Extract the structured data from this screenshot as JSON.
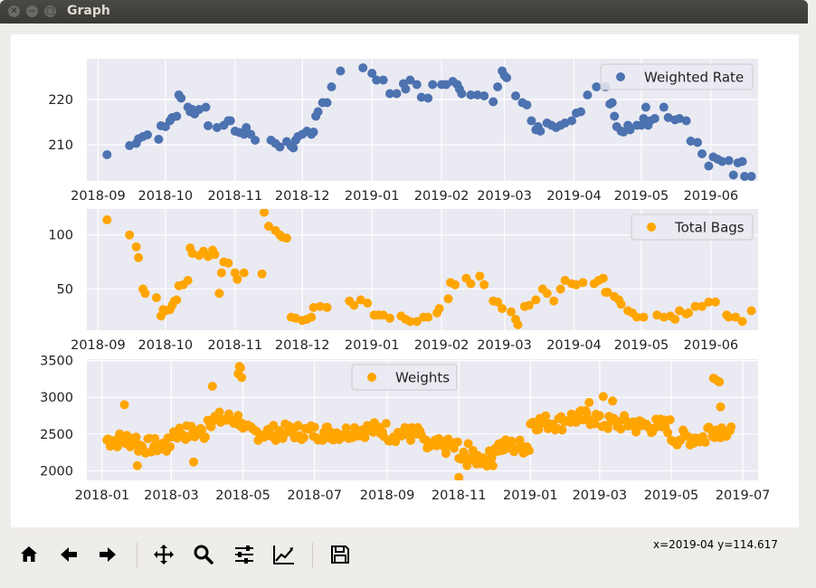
{
  "window": {
    "title": "Graph"
  },
  "status": {
    "coords": "x=2019-04 y=114.617"
  },
  "toolbar": {
    "icons": [
      "home-icon",
      "back-icon",
      "forward-icon",
      "pan-icon",
      "zoom-icon",
      "subplots-icon",
      "axes-edit-icon",
      "save-icon"
    ]
  },
  "colors": {
    "bg": "#eaeaf2",
    "blue": "#4c72b0",
    "orange": "#ffa500",
    "grid": "#ffffff"
  },
  "chart_data": [
    {
      "type": "scatter",
      "legend": "Weighted Rate",
      "legend_loc": "upper right",
      "x_axis": "date",
      "xlim": [
        "2018-08-27",
        "2019-06-22"
      ],
      "ylim": [
        202,
        229
      ],
      "xticks": [
        "2018-09",
        "2018-10",
        "2018-11",
        "2018-12",
        "2019-01",
        "2019-02",
        "2019-03",
        "2019-04",
        "2019-05",
        "2019-06"
      ],
      "yticks": [
        210,
        220
      ],
      "points": [
        [
          "2018-09-05",
          207.8
        ],
        [
          "2018-09-15",
          209.8
        ],
        [
          "2018-09-18",
          210.3
        ],
        [
          "2018-09-19",
          211.3
        ],
        [
          "2018-09-21",
          211.8
        ],
        [
          "2018-09-23",
          212.2
        ],
        [
          "2018-09-28",
          211.2
        ],
        [
          "2018-09-29",
          214.2
        ],
        [
          "2018-10-01",
          214.0
        ],
        [
          "2018-10-03",
          215.3
        ],
        [
          "2018-10-04",
          216.0
        ],
        [
          "2018-10-06",
          216.3
        ],
        [
          "2018-10-07",
          221.0
        ],
        [
          "2018-10-08",
          220.3
        ],
        [
          "2018-10-11",
          218.3
        ],
        [
          "2018-10-12",
          217.3
        ],
        [
          "2018-10-13",
          217.8
        ],
        [
          "2018-10-14",
          216.8
        ],
        [
          "2018-10-16",
          217.8
        ],
        [
          "2018-10-19",
          218.3
        ],
        [
          "2018-10-20",
          214.2
        ],
        [
          "2018-10-24",
          213.8
        ],
        [
          "2018-10-27",
          214.3
        ],
        [
          "2018-10-29",
          215.3
        ],
        [
          "2018-10-30",
          215.3
        ],
        [
          "2018-11-01",
          213.0
        ],
        [
          "2018-11-03",
          212.7
        ],
        [
          "2018-11-05",
          212.3
        ],
        [
          "2018-11-06",
          213.8
        ],
        [
          "2018-11-08",
          212.3
        ],
        [
          "2018-11-10",
          211.0
        ],
        [
          "2018-11-17",
          211.0
        ],
        [
          "2018-11-19",
          210.3
        ],
        [
          "2018-11-21",
          209.5
        ],
        [
          "2018-11-24",
          210.7
        ],
        [
          "2018-11-26",
          209.7
        ],
        [
          "2018-11-27",
          209.3
        ],
        [
          "2018-11-28",
          211.0
        ],
        [
          "2018-11-29",
          211.8
        ],
        [
          "2018-12-01",
          212.3
        ],
        [
          "2018-12-03",
          213.0
        ],
        [
          "2018-12-05",
          212.3
        ],
        [
          "2018-12-06",
          212.8
        ],
        [
          "2018-12-07",
          216.3
        ],
        [
          "2018-12-08",
          217.3
        ],
        [
          "2018-12-10",
          219.3
        ],
        [
          "2018-12-12",
          219.3
        ],
        [
          "2018-12-14",
          222.8
        ],
        [
          "2018-12-18",
          226.3
        ],
        [
          "2018-12-28",
          227.0
        ],
        [
          "2019-01-01",
          225.8
        ],
        [
          "2019-01-03",
          224.3
        ],
        [
          "2019-01-06",
          224.3
        ],
        [
          "2019-01-09",
          221.3
        ],
        [
          "2019-01-12",
          221.3
        ],
        [
          "2019-01-15",
          223.5
        ],
        [
          "2019-01-16",
          222.3
        ],
        [
          "2019-01-18",
          224.3
        ],
        [
          "2019-01-21",
          223.3
        ],
        [
          "2019-01-23",
          220.5
        ],
        [
          "2019-01-26",
          220.3
        ],
        [
          "2019-01-28",
          223.3
        ],
        [
          "2019-02-01",
          223.3
        ],
        [
          "2019-02-03",
          223.3
        ],
        [
          "2019-02-06",
          224.0
        ],
        [
          "2019-02-08",
          223.3
        ],
        [
          "2019-02-09",
          222.3
        ],
        [
          "2019-02-10",
          221.3
        ],
        [
          "2019-02-14",
          221.0
        ],
        [
          "2019-02-17",
          221.0
        ],
        [
          "2019-02-20",
          220.8
        ],
        [
          "2019-02-24",
          219.5
        ],
        [
          "2019-02-26",
          222.8
        ],
        [
          "2019-02-28",
          226.3
        ],
        [
          "2019-03-01",
          225.3
        ],
        [
          "2019-03-02",
          224.8
        ],
        [
          "2019-03-06",
          220.8
        ],
        [
          "2019-03-09",
          219.3
        ],
        [
          "2019-03-11",
          218.8
        ],
        [
          "2019-03-13",
          215.3
        ],
        [
          "2019-03-15",
          213.3
        ],
        [
          "2019-03-16",
          214.0
        ],
        [
          "2019-03-17",
          213.0
        ],
        [
          "2019-03-20",
          214.8
        ],
        [
          "2019-03-22",
          214.3
        ],
        [
          "2019-03-24",
          213.8
        ],
        [
          "2019-03-26",
          214.3
        ],
        [
          "2019-03-28",
          214.8
        ],
        [
          "2019-03-31",
          215.3
        ],
        [
          "2019-04-02",
          217.0
        ],
        [
          "2019-04-04",
          217.3
        ],
        [
          "2019-04-07",
          221.0
        ],
        [
          "2019-04-11",
          222.8
        ],
        [
          "2019-04-15",
          222.8
        ],
        [
          "2019-04-17",
          219.0
        ],
        [
          "2019-04-18",
          219.3
        ],
        [
          "2019-04-19",
          216.3
        ],
        [
          "2019-04-20",
          214.0
        ],
        [
          "2019-04-22",
          213.0
        ],
        [
          "2019-04-23",
          212.8
        ],
        [
          "2019-04-25",
          214.3
        ],
        [
          "2019-04-26",
          213.3
        ],
        [
          "2019-04-29",
          214.3
        ],
        [
          "2019-05-01",
          214.3
        ],
        [
          "2019-05-02",
          215.8
        ],
        [
          "2019-05-03",
          218.3
        ],
        [
          "2019-05-04",
          214.3
        ],
        [
          "2019-05-05",
          215.3
        ],
        [
          "2019-05-07",
          215.8
        ],
        [
          "2019-05-11",
          218.3
        ],
        [
          "2019-05-13",
          216.0
        ],
        [
          "2019-05-16",
          215.5
        ],
        [
          "2019-05-18",
          215.8
        ],
        [
          "2019-05-21",
          215.3
        ],
        [
          "2019-05-23",
          210.8
        ],
        [
          "2019-05-26",
          210.5
        ],
        [
          "2019-05-28",
          208.0
        ],
        [
          "2019-05-31",
          205.3
        ],
        [
          "2019-06-02",
          207.3
        ],
        [
          "2019-06-04",
          206.8
        ],
        [
          "2019-06-06",
          206.3
        ],
        [
          "2019-06-09",
          206.5
        ],
        [
          "2019-06-11",
          203.3
        ],
        [
          "2019-06-13",
          206.0
        ],
        [
          "2019-06-15",
          206.3
        ],
        [
          "2019-06-16",
          203.0
        ],
        [
          "2019-06-19",
          203.0
        ]
      ]
    },
    {
      "type": "scatter",
      "legend": "Total Bags",
      "legend_loc": "upper right",
      "x_axis": "date",
      "xlim": [
        "2018-08-27",
        "2019-06-22"
      ],
      "ylim": [
        12,
        124
      ],
      "xticks": [
        "2018-09",
        "2018-10",
        "2018-11",
        "2018-12",
        "2019-01",
        "2019-02",
        "2019-03",
        "2019-04",
        "2019-05",
        "2019-06"
      ],
      "yticks": [
        50,
        100
      ],
      "points": [
        [
          "2018-09-05",
          114
        ],
        [
          "2018-09-15",
          100
        ],
        [
          "2018-09-18",
          89
        ],
        [
          "2018-09-19",
          79
        ],
        [
          "2018-09-21",
          50
        ],
        [
          "2018-09-22",
          46
        ],
        [
          "2018-09-27",
          42
        ],
        [
          "2018-09-29",
          25
        ],
        [
          "2018-09-30",
          31
        ],
        [
          "2018-10-01",
          30
        ],
        [
          "2018-10-03",
          31
        ],
        [
          "2018-10-04",
          35
        ],
        [
          "2018-10-05",
          39
        ],
        [
          "2018-10-06",
          40
        ],
        [
          "2018-10-07",
          53
        ],
        [
          "2018-10-09",
          54
        ],
        [
          "2018-10-11",
          58
        ],
        [
          "2018-10-12",
          88
        ],
        [
          "2018-10-13",
          83
        ],
        [
          "2018-10-16",
          81
        ],
        [
          "2018-10-18",
          85
        ],
        [
          "2018-10-20",
          80
        ],
        [
          "2018-10-22",
          86
        ],
        [
          "2018-10-23",
          82
        ],
        [
          "2018-10-26",
          65
        ],
        [
          "2018-10-25",
          46
        ],
        [
          "2018-10-27",
          75
        ],
        [
          "2018-10-29",
          74
        ],
        [
          "2018-11-01",
          65
        ],
        [
          "2018-11-02",
          59
        ],
        [
          "2018-11-05",
          65
        ],
        [
          "2018-11-13",
          64
        ],
        [
          "2018-11-14",
          121
        ],
        [
          "2018-11-16",
          108
        ],
        [
          "2018-11-19",
          104
        ],
        [
          "2018-11-21",
          100
        ],
        [
          "2018-11-22",
          98
        ],
        [
          "2018-11-24",
          97
        ],
        [
          "2018-11-26",
          24
        ],
        [
          "2018-11-28",
          23
        ],
        [
          "2018-12-01",
          21
        ],
        [
          "2018-12-03",
          22
        ],
        [
          "2018-12-05",
          24
        ],
        [
          "2018-12-06",
          33
        ],
        [
          "2018-12-09",
          34
        ],
        [
          "2018-12-12",
          33
        ],
        [
          "2018-12-22",
          39
        ],
        [
          "2018-12-24",
          35
        ],
        [
          "2018-12-27",
          40
        ],
        [
          "2018-12-30",
          37
        ],
        [
          "2019-01-02",
          26
        ],
        [
          "2019-01-04",
          26
        ],
        [
          "2019-01-06",
          26
        ],
        [
          "2019-01-09",
          23
        ],
        [
          "2019-01-14",
          25
        ],
        [
          "2019-01-16",
          22
        ],
        [
          "2019-01-18",
          20
        ],
        [
          "2019-01-21",
          20
        ],
        [
          "2019-01-24",
          24
        ],
        [
          "2019-01-26",
          24
        ],
        [
          "2019-01-30",
          28
        ],
        [
          "2019-01-31",
          32
        ],
        [
          "2019-02-04",
          41
        ],
        [
          "2019-02-05",
          56
        ],
        [
          "2019-02-07",
          54
        ],
        [
          "2019-02-12",
          60
        ],
        [
          "2019-02-14",
          55
        ],
        [
          "2019-02-18",
          62
        ],
        [
          "2019-02-20",
          54
        ],
        [
          "2019-02-24",
          39
        ],
        [
          "2019-02-26",
          38
        ],
        [
          "2019-02-28",
          32
        ],
        [
          "2019-03-04",
          29
        ],
        [
          "2019-03-06",
          22
        ],
        [
          "2019-03-07",
          17
        ],
        [
          "2019-03-10",
          34
        ],
        [
          "2019-03-12",
          35
        ],
        [
          "2019-03-15",
          40
        ],
        [
          "2019-03-18",
          50
        ],
        [
          "2019-03-20",
          46
        ],
        [
          "2019-03-23",
          39
        ],
        [
          "2019-03-26",
          50
        ],
        [
          "2019-03-28",
          58
        ],
        [
          "2019-03-31",
          55
        ],
        [
          "2019-04-02",
          54
        ],
        [
          "2019-04-05",
          56
        ],
        [
          "2019-04-10",
          55
        ],
        [
          "2019-04-12",
          58
        ],
        [
          "2019-04-14",
          60
        ],
        [
          "2019-04-15",
          47
        ],
        [
          "2019-04-16",
          47
        ],
        [
          "2019-04-19",
          43
        ],
        [
          "2019-04-21",
          40
        ],
        [
          "2019-04-22",
          36
        ],
        [
          "2019-04-25",
          30
        ],
        [
          "2019-04-27",
          28
        ],
        [
          "2019-04-29",
          24
        ],
        [
          "2019-05-02",
          24
        ],
        [
          "2019-05-08",
          26
        ],
        [
          "2019-05-11",
          24
        ],
        [
          "2019-05-14",
          25
        ],
        [
          "2019-05-16",
          22
        ],
        [
          "2019-05-18",
          30
        ],
        [
          "2019-05-21",
          27
        ],
        [
          "2019-05-22",
          28
        ],
        [
          "2019-05-25",
          34
        ],
        [
          "2019-05-28",
          34
        ],
        [
          "2019-05-31",
          38
        ],
        [
          "2019-06-03",
          38
        ],
        [
          "2019-06-08",
          26
        ],
        [
          "2019-06-09",
          24
        ],
        [
          "2019-06-12",
          24
        ],
        [
          "2019-06-15",
          20
        ],
        [
          "2019-06-19",
          30
        ]
      ]
    },
    {
      "type": "scatter",
      "legend": "Weights",
      "legend_loc": "upper center",
      "x_axis": "date",
      "xlim": [
        "2017-12-19",
        "2019-07-14"
      ],
      "ylim": [
        1870,
        3520
      ],
      "xticks": [
        "2018-01",
        "2018-03",
        "2018-05",
        "2018-07",
        "2018-09",
        "2018-11",
        "2019-01",
        "2019-03",
        "2019-05",
        "2019-07"
      ],
      "yticks": [
        2000,
        2500,
        3000,
        3500
      ],
      "baseline_by_month": {
        "2018-01": 2420,
        "2018-02": 2340,
        "2018-03": 2520,
        "2018-04": 2700,
        "2018-05": 2520,
        "2018-06": 2530,
        "2018-07": 2520,
        "2018-08": 2560,
        "2018-09": 2500,
        "2018-10": 2330,
        "2018-11": 2170,
        "2018-12": 2330,
        "2019-01": 2660,
        "2019-02": 2720,
        "2019-03": 2650,
        "2019-04": 2610,
        "2019-05": 2450,
        "2019-06": 2560
      },
      "extremes": [
        [
          "2018-01-20",
          2900
        ],
        [
          "2018-01-31",
          2070
        ],
        [
          "2018-03-20",
          2120
        ],
        [
          "2018-04-05",
          3150
        ],
        [
          "2018-04-27",
          3320
        ],
        [
          "2018-04-28",
          3420
        ],
        [
          "2018-04-29",
          3400
        ],
        [
          "2018-04-30",
          3270
        ],
        [
          "2018-11-01",
          1910
        ],
        [
          "2018-11-09",
          2370
        ],
        [
          "2019-02-20",
          2930
        ],
        [
          "2019-03-04",
          3010
        ],
        [
          "2019-03-12",
          2950
        ],
        [
          "2019-06-06",
          3260
        ],
        [
          "2019-06-07",
          3250
        ],
        [
          "2019-06-10",
          3220
        ],
        [
          "2019-06-11",
          3210
        ],
        [
          "2019-06-12",
          2870
        ]
      ]
    }
  ]
}
